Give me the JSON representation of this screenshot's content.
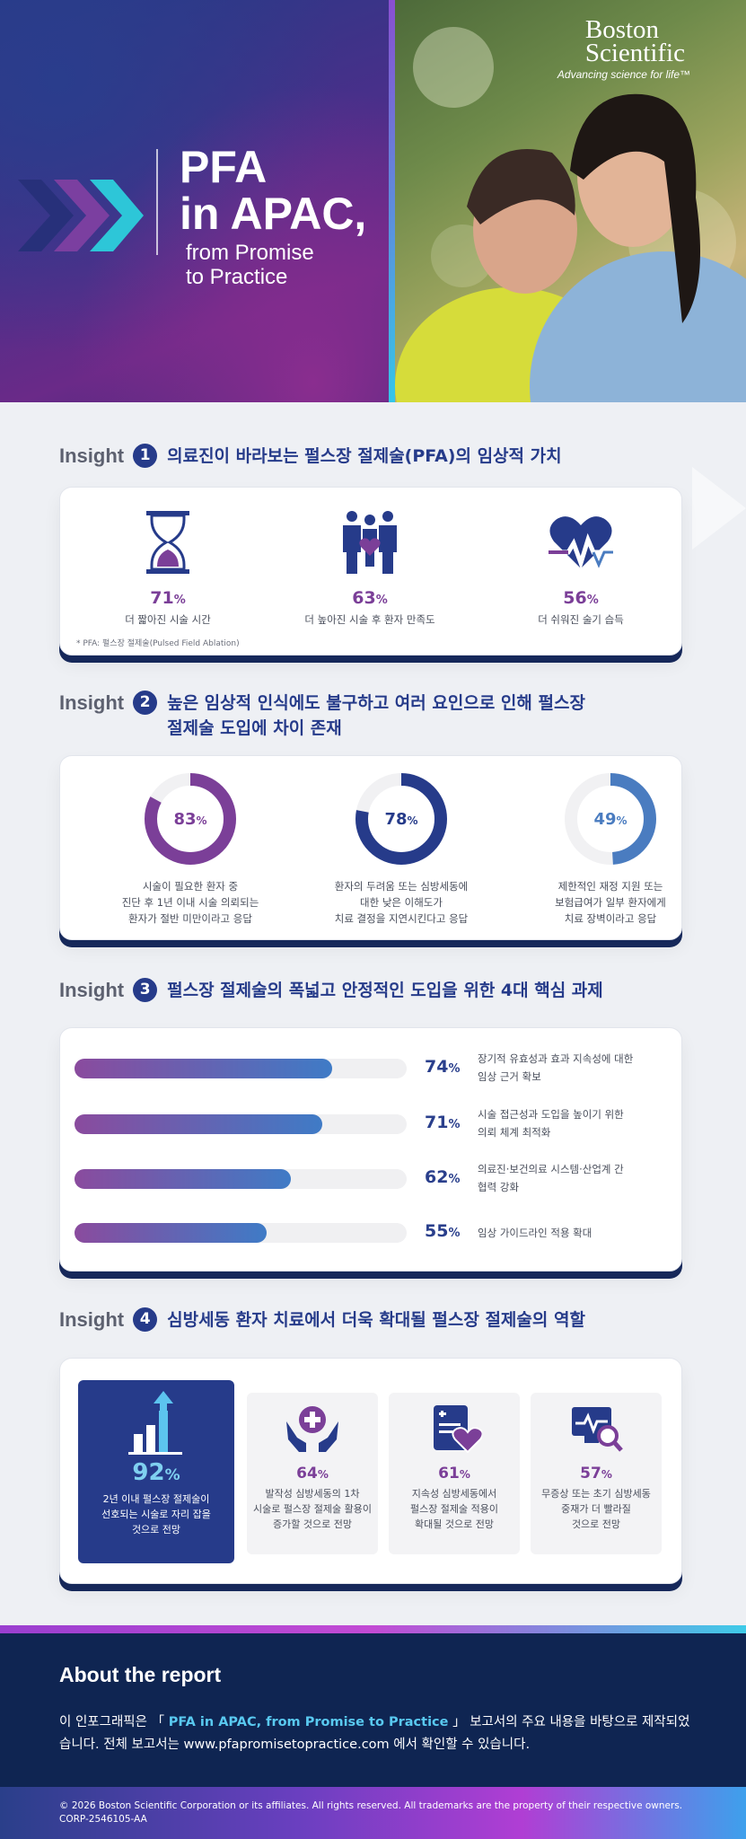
{
  "hero": {
    "title_line1": "PFA",
    "title_line2": "in APAC,",
    "subtitle_line1": "from Promise",
    "subtitle_line2": "to Practice",
    "logo_line1": "Boston",
    "logo_line2": "Scientific",
    "tagline": "Advancing science for life™"
  },
  "insight1": {
    "word": "Insight",
    "num": "1",
    "title": "의료진이 바라보는 펄스장 절제술(PFA)의 임상적 가치",
    "items": [
      {
        "icon": "hourglass-icon",
        "value": "71",
        "unit": "%",
        "caption": "더 짧아진 시술 시간"
      },
      {
        "icon": "family-heart-icon",
        "value": "63",
        "unit": "%",
        "caption": "더 높아진 시술 후 환자 만족도"
      },
      {
        "icon": "heart-pulse-icon",
        "value": "56",
        "unit": "%",
        "caption": "더 쉬워진 술기 습득"
      }
    ],
    "footnote": "* PFA: 펄스장 절제술(Pulsed Field Ablation)"
  },
  "insight2": {
    "word": "Insight",
    "num": "2",
    "title_line1": "높은 임상적 인식에도 불구하고 여러 요인으로 인해 펄스장",
    "title_line2": "절제술 도입에 차이 존재",
    "items": [
      {
        "value": 83,
        "label": "83",
        "unit": "%",
        "color": "#7b3f98",
        "c1": "시술이 필요한 환자 중",
        "c2": "진단 후 1년 이내 시술 의뢰되는",
        "c3": "환자가 절반 미만이라고 응답"
      },
      {
        "value": 78,
        "label": "78",
        "unit": "%",
        "color": "#263b8a",
        "c1": "환자의 두려움 또는 심방세동에",
        "c2": "대한 낮은 이해도가",
        "c3": "치료 결정을 지연시킨다고 응답"
      },
      {
        "value": 49,
        "label": "49",
        "unit": "%",
        "color": "#4a7cc0",
        "c1": "제한적인 재정 지원 또는",
        "c2": "보험급여가 일부 환자에게",
        "c3": "치료 장벽이라고 응답"
      }
    ]
  },
  "insight3": {
    "word": "Insight",
    "num": "3",
    "title": "펄스장 절제술의 폭넓고 안정적인 도입을 위한 4대 핵심 과제",
    "items": [
      {
        "value": 74,
        "label": "74",
        "unit": "%",
        "l1": "장기적 유효성과 효과 지속성에 대한",
        "l2": "임상 근거 확보"
      },
      {
        "value": 71,
        "label": "71",
        "unit": "%",
        "l1": "시술 접근성과 도입을 높이기 위한",
        "l2": "의뢰 체계 최적화"
      },
      {
        "value": 62,
        "label": "62",
        "unit": "%",
        "l1": "의료진·보건의료 시스템·산업계 간",
        "l2": "협력 강화"
      },
      {
        "value": 55,
        "label": "55",
        "unit": "%",
        "l1": "임상 가이드라인 적용 확대",
        "l2": ""
      }
    ]
  },
  "insight4": {
    "word": "Insight",
    "num": "4",
    "title": "심방세동 환자 치료에서 더욱 확대될 펄스장 절제술의 역할",
    "items": [
      {
        "icon": "bar-chart-arrow-icon",
        "value": "92",
        "unit": "%",
        "c1": "2년 이내 펄스장 절제술이",
        "c2": "선호되는 시술로 자리 잡을",
        "c3": "것으로 전망"
      },
      {
        "icon": "hands-medical-icon",
        "value": "64",
        "unit": "%",
        "c1": "발작성 심방세동의 1차",
        "c2": "시술로 펄스장 절제술 활용이",
        "c3": "증가할 것으로 전망"
      },
      {
        "icon": "clipboard-heart-icon",
        "value": "61",
        "unit": "%",
        "c1": "지속성 심방세동에서",
        "c2": "펄스장 절제술 적용이",
        "c3": "확대될 것으로 전망"
      },
      {
        "icon": "monitor-search-icon",
        "value": "57",
        "unit": "%",
        "c1": "무증상 또는 초기 심방세동",
        "c2": "중재가 더 빨라질",
        "c3": "것으로 전망"
      }
    ]
  },
  "about": {
    "title": "About the report",
    "text_pre": "이 인포그래픽은 「 ",
    "text_highlight": "PFA in APAC, from Promise to Practice",
    "text_mid": " 」 보고서의 주요 내용을 바탕으로 제작되었습니다. 전체 보고서는 www.pfapromisetopractice.com 에서 확인할 수 있습니다."
  },
  "footer": {
    "copyright": "© 2026 Boston Scientific Corporation or its affiliates. All rights reserved. All trademarks are the property of their respective owners.",
    "code": "CORP-2546105-AA"
  }
}
